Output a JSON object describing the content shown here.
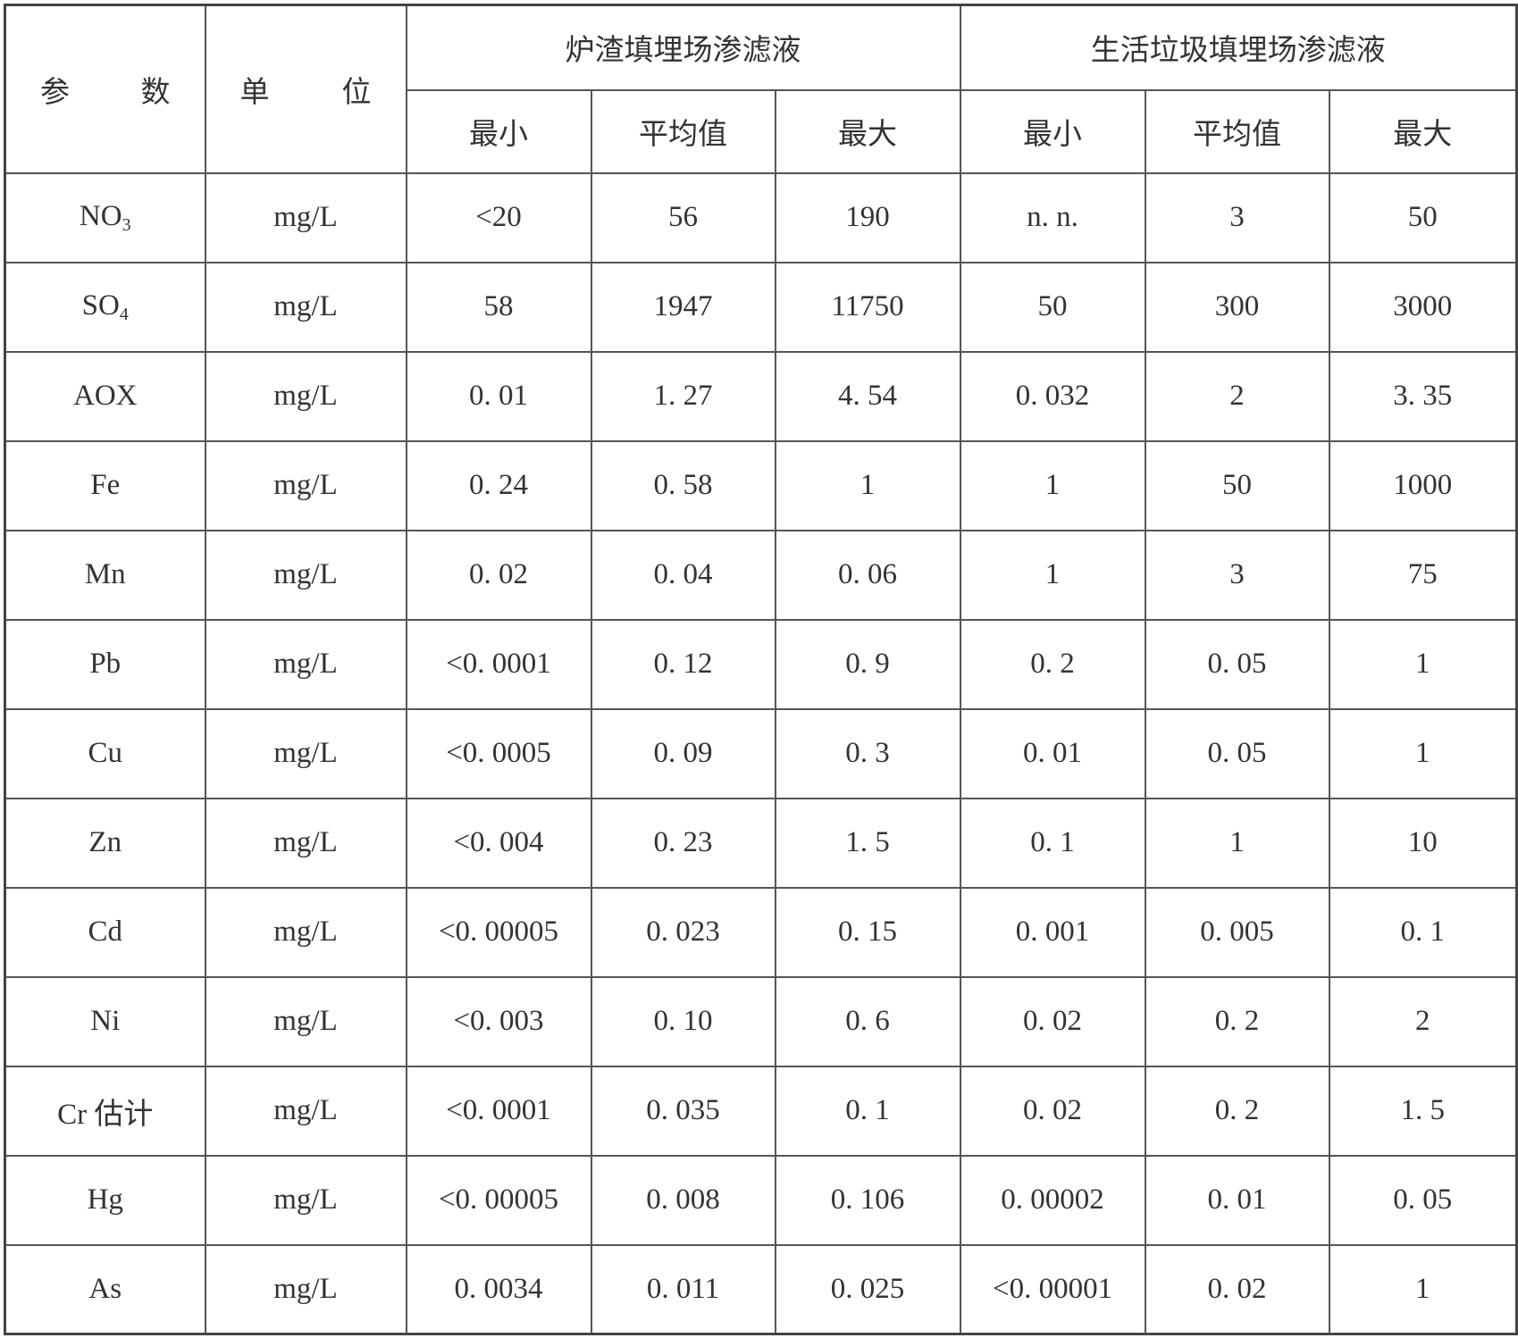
{
  "header": {
    "param": [
      "参",
      "数"
    ],
    "unit": [
      "单",
      "位"
    ],
    "group1": "炉渣填埋场渗滤液",
    "group2": "生活垃圾填埋场渗滤液",
    "sub": [
      "最小",
      "平均值",
      "最大",
      "最小",
      "平均值",
      "最大"
    ]
  },
  "rows": [
    {
      "param": "NO",
      "sub": "3",
      "unit": "mg/L",
      "values": [
        "<20",
        "56",
        "190",
        "n. n.",
        "3",
        "50"
      ]
    },
    {
      "param": "SO",
      "sub": "4",
      "unit": "mg/L",
      "values": [
        "58",
        "1947",
        "11750",
        "50",
        "300",
        "3000"
      ]
    },
    {
      "param": "AOX",
      "sub": "",
      "unit": "mg/L",
      "values": [
        "0. 01",
        "1. 27",
        "4. 54",
        "0. 032",
        "2",
        "3. 35"
      ]
    },
    {
      "param": "Fe",
      "sub": "",
      "unit": "mg/L",
      "values": [
        "0. 24",
        "0. 58",
        "1",
        "1",
        "50",
        "1000"
      ]
    },
    {
      "param": "Mn",
      "sub": "",
      "unit": "mg/L",
      "values": [
        "0. 02",
        "0. 04",
        "0. 06",
        "1",
        "3",
        "75"
      ]
    },
    {
      "param": "Pb",
      "sub": "",
      "unit": "mg/L",
      "values": [
        "<0. 0001",
        "0. 12",
        "0. 9",
        "0. 2",
        "0. 05",
        "1"
      ]
    },
    {
      "param": "Cu",
      "sub": "",
      "unit": "mg/L",
      "values": [
        "<0. 0005",
        "0. 09",
        "0. 3",
        "0. 01",
        "0. 05",
        "1"
      ]
    },
    {
      "param": "Zn",
      "sub": "",
      "unit": "mg/L",
      "values": [
        "<0. 004",
        "0. 23",
        "1. 5",
        "0. 1",
        "1",
        "10"
      ]
    },
    {
      "param": "Cd",
      "sub": "",
      "unit": "mg/L",
      "values": [
        "<0. 00005",
        "0. 023",
        "0. 15",
        "0. 001",
        "0. 005",
        "0. 1"
      ]
    },
    {
      "param": "Ni",
      "sub": "",
      "unit": "mg/L",
      "values": [
        "<0. 003",
        "0. 10",
        "0. 6",
        "0. 02",
        "0. 2",
        "2"
      ]
    },
    {
      "param": "Cr 估计",
      "sub": "",
      "unit": "mg/L",
      "values": [
        "<0. 0001",
        "0. 035",
        "0. 1",
        "0. 02",
        "0. 2",
        "1. 5"
      ]
    },
    {
      "param": "Hg",
      "sub": "",
      "unit": "mg/L",
      "values": [
        "<0. 00005",
        "0. 008",
        "0. 106",
        "0. 00002",
        "0. 01",
        "0. 05"
      ]
    },
    {
      "param": "As",
      "sub": "",
      "unit": "mg/L",
      "values": [
        "0. 0034",
        "0. 011",
        "0. 025",
        "<0. 00001",
        "0. 02",
        "1"
      ]
    }
  ]
}
